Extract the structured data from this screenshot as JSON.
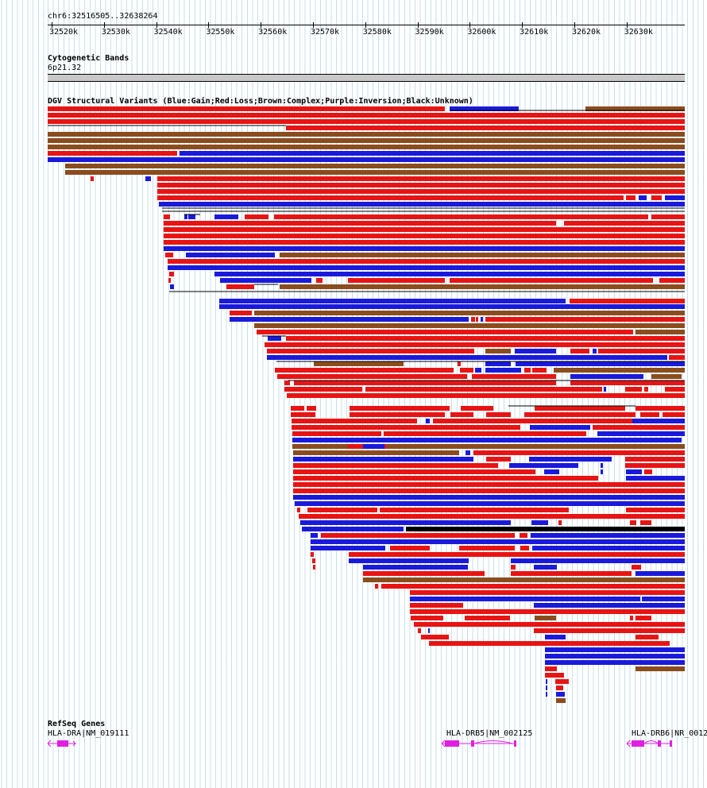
{
  "region": {
    "label": "chr6:32516505..32638264"
  },
  "ruler": {
    "ticks": [
      "32520k",
      "32530k",
      "32540k",
      "32550k",
      "32560k",
      "32570k",
      "32580k",
      "32590k",
      "32600k",
      "32610k",
      "32620k",
      "32630k"
    ]
  },
  "cytoband": {
    "title": "Cytogenetic Bands",
    "band": "6p21.32"
  },
  "dgv": {
    "title": "DGV Structural Variants (Blue:Gain;Red:Loss;Brown:Complex;Purple:Inversion;Black:Unknown)",
    "colors": {
      "gain": "#1a1adb",
      "loss": "#e81414",
      "complex": "#8b4c1e",
      "inversion": "#9b30c0",
      "unknown": "#000000"
    }
  },
  "refseq": {
    "title": "RefSeq Genes",
    "color": "#e020e0",
    "genes": [
      {
        "label": "HLA-DRA|NM_019111"
      },
      {
        "label": "HLA-DRB5|NM_002125"
      },
      {
        "label": "HLA-DRB6|NR_0012"
      }
    ]
  }
}
